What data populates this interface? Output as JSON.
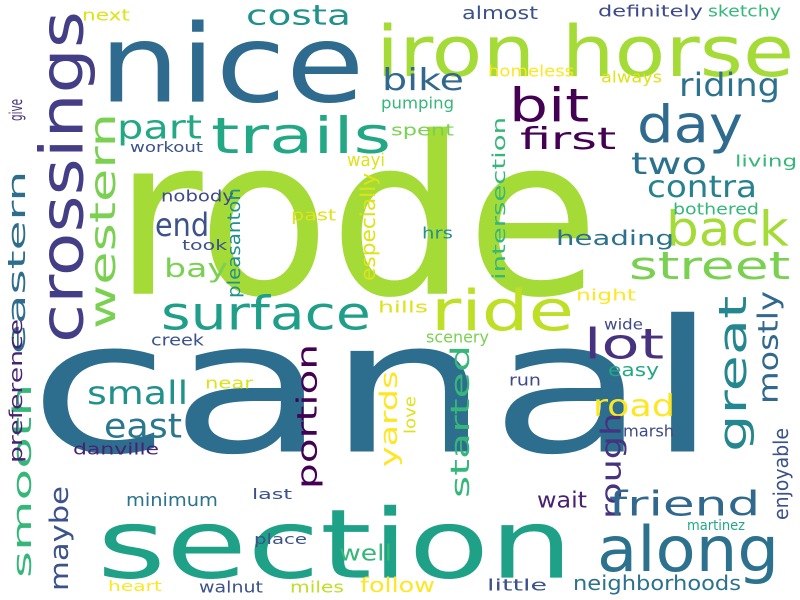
{
  "word_cloud": {
    "background": "#ffffff",
    "words": [
      {
        "text": "rode",
        "color": "#a5db36",
        "vertical": false
      },
      {
        "text": "canal",
        "color": "#2d6e8e",
        "vertical": false
      },
      {
        "text": "section",
        "color": "#1fa187",
        "vertical": false
      },
      {
        "text": "nice",
        "color": "#2f6b8e",
        "vertical": false
      },
      {
        "text": "iron horse",
        "color": "#a5db36",
        "vertical": false
      },
      {
        "text": "crossings",
        "color": "#433e85",
        "vertical": true
      },
      {
        "text": "trails",
        "color": "#22a884",
        "vertical": false
      },
      {
        "text": "ride",
        "color": "#bddf26",
        "vertical": false
      },
      {
        "text": "along",
        "color": "#2c728e",
        "vertical": false
      },
      {
        "text": "day",
        "color": "#2f6b8e",
        "vertical": false
      },
      {
        "text": "bit",
        "color": "#440154",
        "vertical": false
      },
      {
        "text": "back",
        "color": "#a5db36",
        "vertical": false
      },
      {
        "text": "street",
        "color": "#7ad151",
        "vertical": false
      },
      {
        "text": "surface",
        "color": "#1f9e89",
        "vertical": false
      },
      {
        "text": "western",
        "color": "#7ad151",
        "vertical": true
      },
      {
        "text": "eastern",
        "color": "#2d6e8e",
        "vertical": true
      },
      {
        "text": "great",
        "color": "#24868e",
        "vertical": true
      },
      {
        "text": "lot",
        "color": "#46327e",
        "vertical": false
      },
      {
        "text": "portion",
        "color": "#440154",
        "vertical": true
      },
      {
        "text": "costa",
        "color": "#21918c",
        "vertical": false
      },
      {
        "text": "riding",
        "color": "#2c728e",
        "vertical": false
      },
      {
        "text": "first",
        "color": "#440154",
        "vertical": false
      },
      {
        "text": "two",
        "color": "#2c728e",
        "vertical": false
      },
      {
        "text": "contra",
        "color": "#26828e",
        "vertical": false
      },
      {
        "text": "part",
        "color": "#22a884",
        "vertical": false
      },
      {
        "text": "end",
        "color": "#3b528b",
        "vertical": false
      },
      {
        "text": "bay",
        "color": "#7ad151",
        "vertical": false
      },
      {
        "text": "bike",
        "color": "#31688e",
        "vertical": false
      },
      {
        "text": "small",
        "color": "#21918c",
        "vertical": false
      },
      {
        "text": "east",
        "color": "#2a788e",
        "vertical": false
      },
      {
        "text": "road",
        "color": "#fde725",
        "vertical": false
      },
      {
        "text": "rough",
        "color": "#46327e",
        "vertical": true
      },
      {
        "text": "mostly",
        "color": "#31688e",
        "vertical": true
      },
      {
        "text": "started",
        "color": "#35b779",
        "vertical": true
      },
      {
        "text": "friend",
        "color": "#31688e",
        "vertical": false
      },
      {
        "text": "smooth",
        "color": "#35b779",
        "vertical": true
      },
      {
        "text": "maybe",
        "color": "#3b528b",
        "vertical": true
      },
      {
        "text": "yards",
        "color": "#fde725",
        "vertical": true
      },
      {
        "text": "minimum",
        "color": "#2c728e",
        "vertical": false
      },
      {
        "text": "wait",
        "color": "#482173",
        "vertical": false
      },
      {
        "text": "well",
        "color": "#35b779",
        "vertical": false
      },
      {
        "text": "follow",
        "color": "#fde725",
        "vertical": false
      },
      {
        "text": "neighborhoods",
        "color": "#2c728e",
        "vertical": false
      },
      {
        "text": "heading",
        "color": "#2c728e",
        "vertical": false
      },
      {
        "text": "almost",
        "color": "#3b528b",
        "vertical": false
      },
      {
        "text": "definitely",
        "color": "#3e4989",
        "vertical": false
      },
      {
        "text": "sketchy",
        "color": "#35b779",
        "vertical": false
      },
      {
        "text": "next",
        "color": "#dde318",
        "vertical": false
      },
      {
        "text": "homeless",
        "color": "#fde725",
        "vertical": false
      },
      {
        "text": "always",
        "color": "#dde318",
        "vertical": false
      },
      {
        "text": "pumping",
        "color": "#35b779",
        "vertical": false
      },
      {
        "text": "spent",
        "color": "#7ad151",
        "vertical": false
      },
      {
        "text": "workout",
        "color": "#3b528b",
        "vertical": false
      },
      {
        "text": "give",
        "color": "#46327e",
        "vertical": true
      },
      {
        "text": "wayi",
        "color": "#dde318",
        "vertical": false
      },
      {
        "text": "living",
        "color": "#35b779",
        "vertical": false
      },
      {
        "text": "bothered",
        "color": "#35b779",
        "vertical": false
      },
      {
        "text": "nobody",
        "color": "#3e4989",
        "vertical": false
      },
      {
        "text": "took",
        "color": "#3b528b",
        "vertical": false
      },
      {
        "text": "past",
        "color": "#dde318",
        "vertical": false
      },
      {
        "text": "hrs",
        "color": "#21918c",
        "vertical": false
      },
      {
        "text": "intersection",
        "color": "#35b779",
        "vertical": true
      },
      {
        "text": "especially",
        "color": "#dde318",
        "vertical": true
      },
      {
        "text": "pleasanton",
        "color": "#21918c",
        "vertical": true
      },
      {
        "text": "night",
        "color": "#fde725",
        "vertical": false
      },
      {
        "text": "wide",
        "color": "#3e4989",
        "vertical": false
      },
      {
        "text": "hills",
        "color": "#dde318",
        "vertical": false
      },
      {
        "text": "scenery",
        "color": "#7ad151",
        "vertical": false
      },
      {
        "text": "creek",
        "color": "#3b528b",
        "vertical": false
      },
      {
        "text": "preference",
        "color": "#482173",
        "vertical": true
      },
      {
        "text": "easy",
        "color": "#22a884",
        "vertical": false
      },
      {
        "text": "near",
        "color": "#dde318",
        "vertical": false
      },
      {
        "text": "run",
        "color": "#3e4989",
        "vertical": false
      },
      {
        "text": "love",
        "color": "#dde318",
        "vertical": true
      },
      {
        "text": "marsh",
        "color": "#3e4989",
        "vertical": false
      },
      {
        "text": "danville",
        "color": "#482173",
        "vertical": false
      },
      {
        "text": "enjoyable",
        "color": "#3b528b",
        "vertical": true
      },
      {
        "text": "last",
        "color": "#3b528b",
        "vertical": false
      },
      {
        "text": "martinez",
        "color": "#22a884",
        "vertical": false
      },
      {
        "text": "place",
        "color": "#3b528b",
        "vertical": false
      },
      {
        "text": "heart",
        "color": "#fde725",
        "vertical": false
      },
      {
        "text": "walnut",
        "color": "#3b528b",
        "vertical": false
      },
      {
        "text": "miles",
        "color": "#bddf26",
        "vertical": false
      },
      {
        "text": "little",
        "color": "#3b528b",
        "vertical": false
      }
    ]
  }
}
